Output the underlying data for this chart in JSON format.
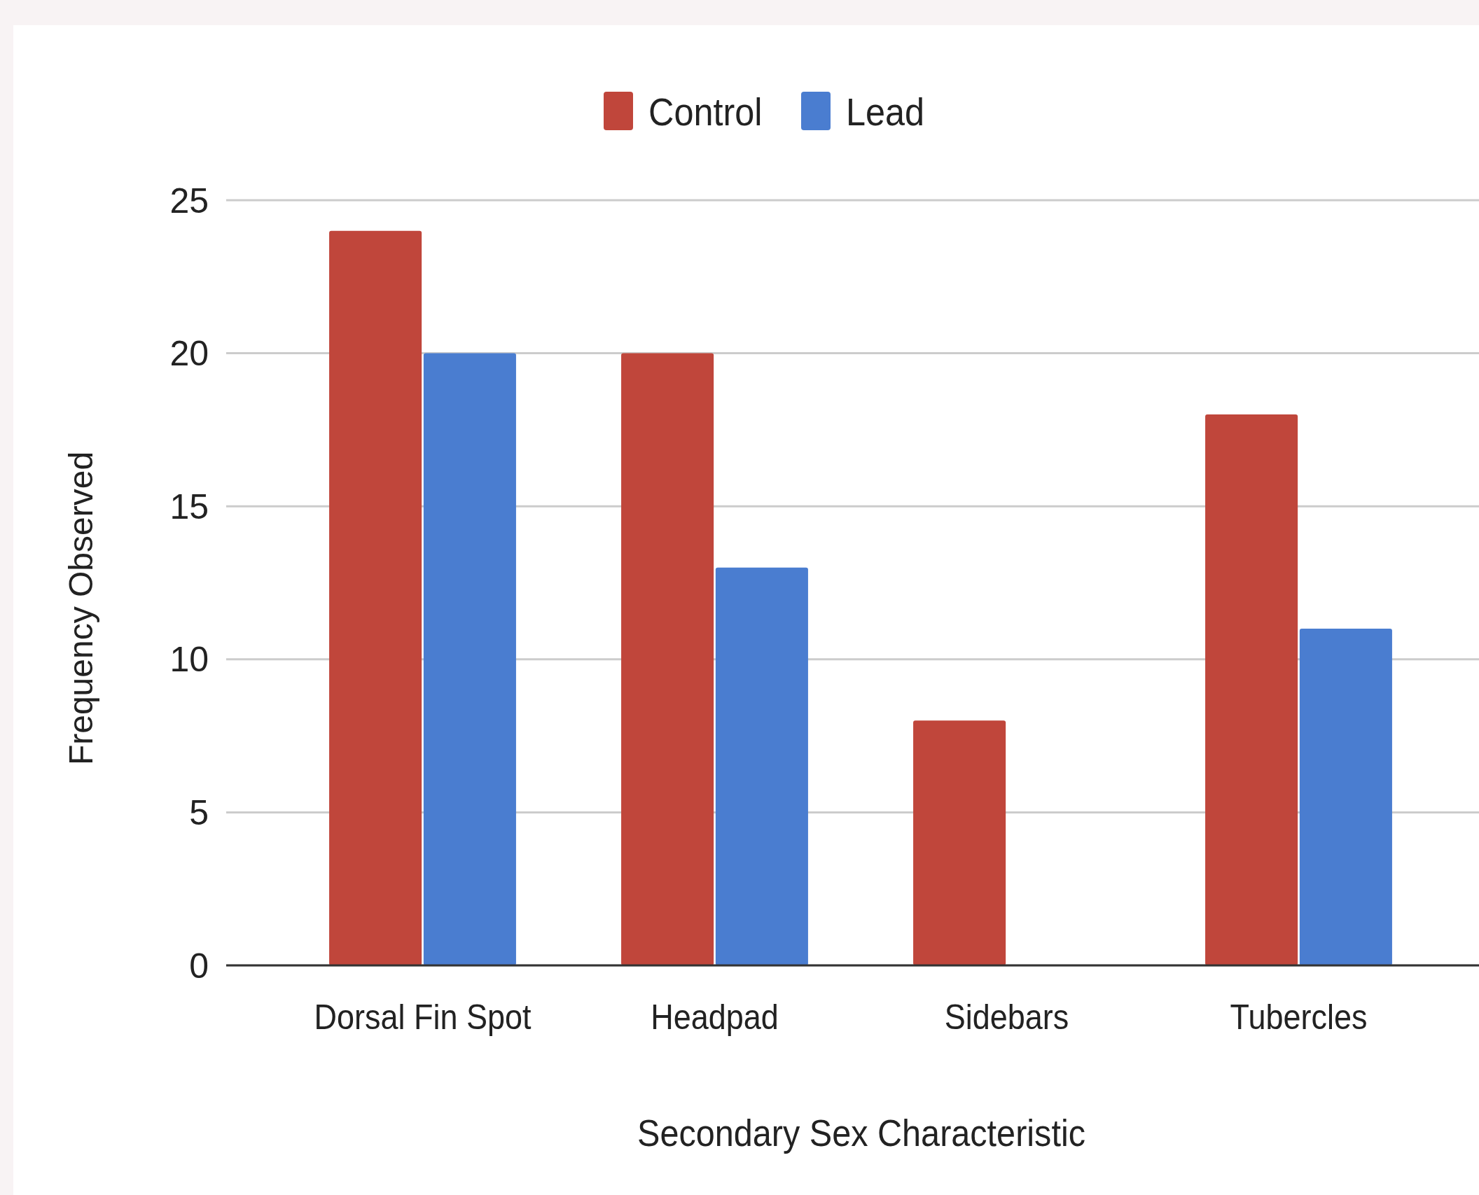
{
  "chart_data": {
    "type": "bar",
    "xlabel": "Secondary Sex Characteristic",
    "ylabel": "Frequency Observed",
    "categories": [
      "Dorsal Fin Spot",
      "Headpad",
      "Sidebars",
      "Tubercles"
    ],
    "series": [
      {
        "name": "Control",
        "color": "#c0463b",
        "values": [
          24,
          20,
          8,
          18
        ]
      },
      {
        "name": "Lead",
        "color": "#4a7dd0",
        "values": [
          20,
          13,
          0,
          11
        ]
      }
    ],
    "ylim": [
      0,
      25
    ],
    "yticks": [
      0,
      5,
      10,
      15,
      20,
      25
    ],
    "grid": "y",
    "legend": "top"
  }
}
